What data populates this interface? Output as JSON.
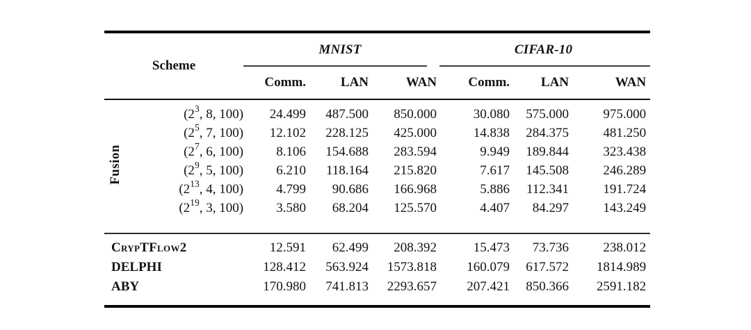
{
  "page": {
    "background_color": "#ffffff",
    "text_color": "#141414",
    "rule_color": "#050505"
  },
  "table": {
    "corner_label": "Scheme",
    "groups": [
      {
        "label": "MNIST",
        "sub_headers": [
          "Comm.",
          "LAN",
          "WAN"
        ]
      },
      {
        "label": "CIFAR-10",
        "sub_headers": [
          "Comm.",
          "LAN",
          "WAN"
        ]
      }
    ],
    "fusion": {
      "group_label": "Fusion",
      "rows": [
        {
          "scheme_pre": "(2",
          "scheme_sup": "3",
          "scheme_post": ", 8, 100)",
          "values": [
            "24.499",
            "487.500",
            "850.000",
            "30.080",
            "575.000",
            "975.000"
          ]
        },
        {
          "scheme_pre": "(2",
          "scheme_sup": "5",
          "scheme_post": ", 7, 100)",
          "values": [
            "12.102",
            "228.125",
            "425.000",
            "14.838",
            "284.375",
            "481.250"
          ]
        },
        {
          "scheme_pre": "(2",
          "scheme_sup": "7",
          "scheme_post": ", 6, 100)",
          "values": [
            "8.106",
            "154.688",
            "283.594",
            "9.949",
            "189.844",
            "323.438"
          ]
        },
        {
          "scheme_pre": "(2",
          "scheme_sup": "9",
          "scheme_post": ", 5, 100)",
          "values": [
            "6.210",
            "118.164",
            "215.820",
            "7.617",
            "145.508",
            "246.289"
          ]
        },
        {
          "scheme_pre": "(2",
          "scheme_sup": "13",
          "scheme_post": ", 4, 100)",
          "values": [
            "4.799",
            "90.686",
            "166.968",
            "5.886",
            "112.341",
            "191.724"
          ]
        },
        {
          "scheme_pre": "(2",
          "scheme_sup": "19",
          "scheme_post": ", 3, 100)",
          "values": [
            "3.580",
            "68.204",
            "125.570",
            "4.407",
            "84.297",
            "143.249"
          ]
        }
      ]
    },
    "baselines": [
      {
        "scheme": "CrypTFlow2",
        "values": [
          "12.591",
          "62.499",
          "208.392",
          "15.473",
          "73.736",
          "238.012"
        ]
      },
      {
        "scheme": "DELPHI",
        "values": [
          "128.412",
          "563.924",
          "1573.818",
          "160.079",
          "617.572",
          "1814.989"
        ]
      },
      {
        "scheme": "ABY",
        "values": [
          "170.980",
          "741.813",
          "2293.657",
          "207.421",
          "850.366",
          "2591.182"
        ]
      }
    ]
  }
}
